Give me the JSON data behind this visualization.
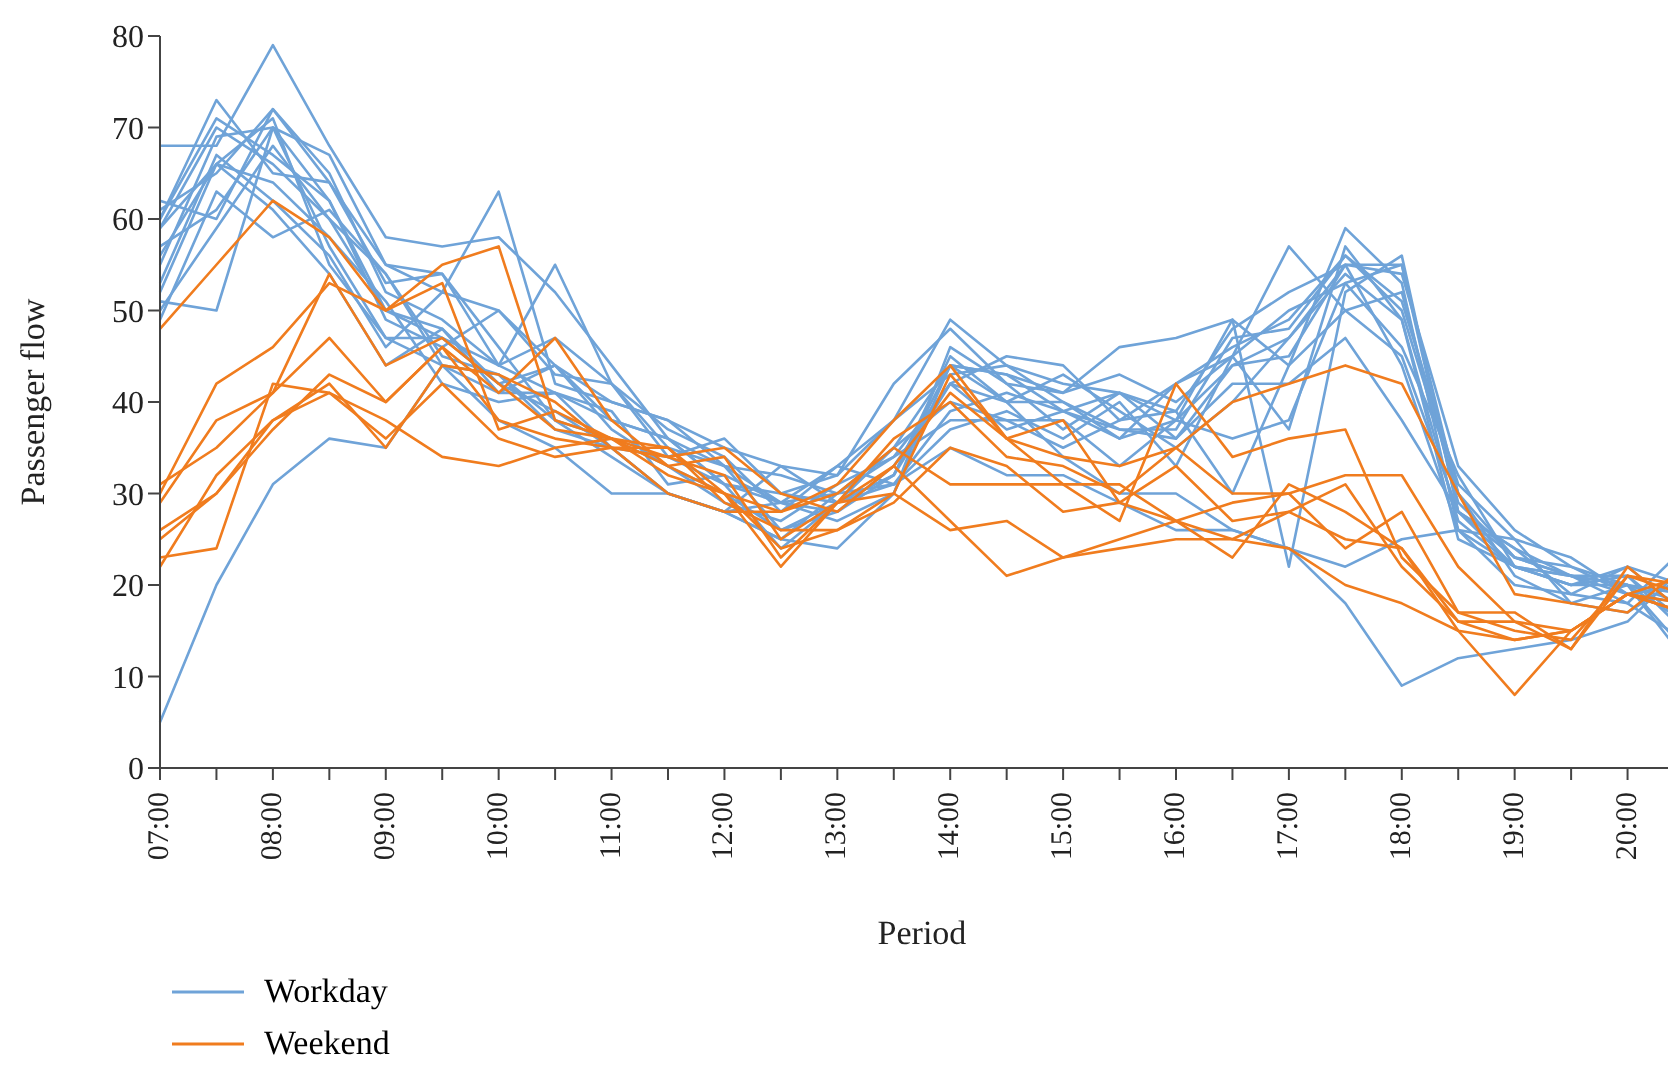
{
  "chart_data": {
    "type": "line",
    "xlabel": "Period",
    "ylabel": "Passenger flow",
    "categories": [
      "07:00",
      null,
      "08:00",
      null,
      "09:00",
      null,
      "10:00",
      null,
      "11:00",
      null,
      "12:00",
      null,
      "13:00",
      null,
      "14:00",
      null,
      "15:00",
      null,
      "16:00",
      null,
      "17:00",
      null,
      "18:00",
      null,
      "19:00",
      null,
      "20:00",
      null
    ],
    "ylim": [
      0,
      80
    ],
    "yticks": [
      0,
      10,
      20,
      30,
      40,
      50,
      60,
      70,
      80
    ],
    "grid": false,
    "legend": "bottom left",
    "marker": "none",
    "line_style": "solid",
    "series": [
      {
        "name": "Workday",
        "color": "#6fa3d8",
        "values": [
          5,
          20,
          31,
          36,
          35,
          44,
          43,
          38,
          34,
          30,
          28,
          33,
          29,
          35,
          40,
          38,
          35,
          38,
          42,
          46,
          49,
          56,
          50,
          30,
          23,
          21,
          20,
          18
        ]
      },
      {
        "color": "#6fa3d8",
        "values": [
          68,
          68,
          79,
          68,
          58,
          57,
          58,
          52,
          44,
          36,
          31,
          30,
          29,
          32,
          44,
          43,
          41,
          43,
          40,
          45,
          57,
          50,
          45,
          28,
          23,
          22,
          20,
          12
        ]
      },
      {
        "color": "#6fa3d8",
        "values": [
          60,
          73,
          65,
          64,
          55,
          52,
          63,
          42,
          40,
          38,
          35,
          33,
          32,
          42,
          48,
          42,
          41,
          46,
          47,
          49,
          44,
          59,
          53,
          26,
          20,
          19,
          18,
          24
        ]
      },
      {
        "color": "#6fa3d8",
        "values": [
          51,
          50,
          70,
          67,
          55,
          54,
          44,
          47,
          42,
          35,
          33,
          32,
          30,
          31,
          39,
          41,
          39,
          36,
          42,
          45,
          50,
          53,
          46,
          32,
          22,
          21,
          21,
          16
        ]
      },
      {
        "color": "#6fa3d8",
        "values": [
          62,
          60,
          72,
          65,
          52,
          49,
          44,
          41,
          35,
          30,
          28,
          25,
          30,
          35,
          44,
          40,
          43,
          39,
          35,
          40,
          47,
          55,
          55,
          28,
          24,
          19,
          22,
          17
        ]
      },
      {
        "color": "#6fa3d8",
        "values": [
          55,
          69,
          70,
          62,
          49,
          46,
          50,
          43,
          42,
          37,
          34,
          28,
          33,
          38,
          49,
          44,
          40,
          37,
          37,
          47,
          48,
          56,
          51,
          31,
          25,
          23,
          19,
          20
        ]
      },
      {
        "color": "#6fa3d8",
        "values": [
          59,
          70,
          66,
          60,
          50,
          48,
          42,
          44,
          38,
          36,
          31,
          29,
          27,
          30,
          46,
          42,
          37,
          41,
          38,
          44,
          47,
          54,
          49,
          27,
          22,
          20,
          21,
          15
        ]
      },
      {
        "color": "#6fa3d8",
        "values": [
          50,
          59,
          68,
          60,
          54,
          44,
          41,
          41,
          39,
          31,
          32,
          29,
          28,
          33,
          42,
          45,
          44,
          38,
          39,
          30,
          44,
          50,
          52,
          29,
          23,
          21,
          18,
          14
        ]
      },
      {
        "color": "#6fa3d8",
        "values": [
          61,
          65,
          72,
          64,
          53,
          54,
          46,
          38,
          36,
          33,
          29,
          27,
          31,
          34,
          38,
          38,
          38,
          33,
          38,
          36,
          38,
          53,
          55,
          30,
          21,
          18,
          20,
          19
        ]
      },
      {
        "color": "#6fa3d8",
        "values": [
          57,
          61,
          70,
          57,
          47,
          47,
          44,
          55,
          42,
          34,
          31,
          24,
          29,
          32,
          45,
          40,
          40,
          36,
          38,
          49,
          22,
          52,
          56,
          28,
          22,
          20,
          22,
          20
        ]
      },
      {
        "color": "#6fa3d8",
        "values": [
          53,
          67,
          62,
          56,
          46,
          52,
          50,
          44,
          40,
          38,
          33,
          26,
          28,
          32,
          42,
          40,
          34,
          30,
          30,
          26,
          24,
          22,
          25,
          26,
          25,
          18,
          17,
          21
        ]
      },
      {
        "color": "#6fa3d8",
        "values": [
          49,
          63,
          58,
          61,
          54,
          45,
          43,
          37,
          35,
          30,
          28,
          29,
          33,
          31,
          35,
          32,
          32,
          29,
          26,
          26,
          24,
          18,
          9,
          12,
          13,
          14,
          16,
          22
        ]
      },
      {
        "color": "#6fa3d8",
        "values": [
          59,
          66,
          71,
          55,
          47,
          44,
          38,
          35,
          30,
          30,
          28,
          25,
          24,
          30,
          44,
          43,
          39,
          37,
          36,
          42,
          42,
          47,
          38,
          28,
          24,
          21,
          19,
          17
        ]
      },
      {
        "color": "#6fa3d8",
        "values": [
          52,
          66,
          64,
          58,
          51,
          42,
          40,
          41,
          38,
          36,
          33,
          29,
          30,
          34,
          42,
          37,
          39,
          41,
          36,
          44,
          45,
          55,
          44,
          26,
          22,
          20,
          20,
          16
        ]
      },
      {
        "color": "#6fa3d8",
        "values": [
          60,
          71,
          67,
          62,
          50,
          47,
          42,
          39,
          35,
          34,
          36,
          30,
          32,
          38,
          43,
          44,
          42,
          41,
          39,
          48,
          52,
          55,
          54,
          33,
          26,
          22,
          19,
          18
        ]
      },
      {
        "color": "#6fa3d8",
        "values": [
          56,
          66,
          61,
          54,
          44,
          48,
          41,
          44,
          37,
          33,
          30,
          26,
          29,
          31,
          37,
          39,
          36,
          40,
          33,
          45,
          37,
          57,
          49,
          25,
          22,
          21,
          20,
          13
        ]
      },
      {
        "name": "Weekend",
        "color": "#f07c1e",
        "values": [
          48,
          55,
          62,
          58,
          50,
          55,
          57,
          38,
          36,
          34,
          35,
          30,
          28,
          33,
          41,
          36,
          34,
          33,
          35,
          40,
          42,
          44,
          42,
          30,
          19,
          18,
          17,
          22
        ]
      },
      {
        "color": "#f07c1e",
        "values": [
          30,
          42,
          46,
          53,
          50,
          53,
          37,
          39,
          36,
          33,
          34,
          25,
          29,
          30,
          43,
          36,
          31,
          27,
          42,
          34,
          36,
          37,
          23,
          17,
          17,
          13,
          21,
          20
        ]
      },
      {
        "color": "#f07c1e",
        "values": [
          31,
          35,
          41,
          47,
          40,
          46,
          41,
          47,
          38,
          33,
          30,
          28,
          31,
          38,
          44,
          36,
          38,
          29,
          33,
          27,
          28,
          25,
          24,
          16,
          16,
          13,
          22,
          17
        ]
      },
      {
        "color": "#f07c1e",
        "values": [
          29,
          38,
          41,
          54,
          44,
          47,
          42,
          37,
          36,
          35,
          30,
          22,
          29,
          36,
          40,
          34,
          33,
          30,
          35,
          30,
          30,
          24,
          28,
          17,
          15,
          14,
          21,
          19
        ]
      },
      {
        "color": "#f07c1e",
        "values": [
          25,
          30,
          38,
          42,
          35,
          44,
          43,
          40,
          35,
          30,
          28,
          28,
          30,
          35,
          31,
          31,
          31,
          31,
          27,
          23,
          31,
          28,
          24,
          15,
          8,
          15,
          19,
          17
        ]
      },
      {
        "color": "#f07c1e",
        "values": [
          23,
          24,
          42,
          41,
          38,
          34,
          33,
          35,
          36,
          32,
          30,
          24,
          26,
          29,
          35,
          33,
          28,
          29,
          27,
          25,
          24,
          20,
          18,
          15,
          14,
          15,
          19,
          21
        ]
      },
      {
        "color": "#f07c1e",
        "values": [
          26,
          30,
          37,
          43,
          40,
          46,
          38,
          36,
          35,
          34,
          32,
          23,
          29,
          33,
          27,
          21,
          23,
          25,
          27,
          29,
          30,
          32,
          32,
          22,
          16,
          15,
          19,
          18
        ]
      },
      {
        "color": "#f07c1e",
        "values": [
          22,
          32,
          38,
          41,
          36,
          42,
          36,
          34,
          35,
          35,
          29,
          26,
          26,
          30,
          26,
          27,
          23,
          24,
          25,
          25,
          28,
          31,
          22,
          16,
          14,
          15,
          19,
          17
        ]
      }
    ]
  }
}
